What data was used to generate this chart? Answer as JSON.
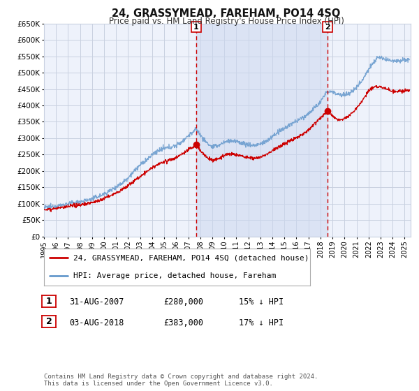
{
  "title": "24, GRASSYMEAD, FAREHAM, PO14 4SQ",
  "subtitle": "Price paid vs. HM Land Registry's House Price Index (HPI)",
  "ylim": [
    0,
    650000
  ],
  "yticks": [
    0,
    50000,
    100000,
    150000,
    200000,
    250000,
    300000,
    350000,
    400000,
    450000,
    500000,
    550000,
    600000,
    650000
  ],
  "ytick_labels": [
    "£0",
    "£50K",
    "£100K",
    "£150K",
    "£200K",
    "£250K",
    "£300K",
    "£350K",
    "£400K",
    "£450K",
    "£500K",
    "£550K",
    "£600K",
    "£650K"
  ],
  "xlim_start": 1995.0,
  "xlim_end": 2025.5,
  "bg_color": "#ffffff",
  "plot_bg_color": "#eef2fb",
  "grid_color": "#c8d0e0",
  "shade_color": "#ccd8f0",
  "hpi_color": "#6699cc",
  "price_color": "#cc0000",
  "marker1_x": 2007.667,
  "marker1_y": 280000,
  "marker2_x": 2018.583,
  "marker2_y": 383000,
  "vline1_x": 2007.667,
  "vline2_x": 2018.583,
  "vline_color": "#cc0000",
  "legend_label_price": "24, GRASSYMEAD, FAREHAM, PO14 4SQ (detached house)",
  "legend_label_hpi": "HPI: Average price, detached house, Fareham",
  "table_row1": [
    "1",
    "31-AUG-2007",
    "£280,000",
    "15% ↓ HPI"
  ],
  "table_row2": [
    "2",
    "03-AUG-2018",
    "£383,000",
    "17% ↓ HPI"
  ],
  "footer": "Contains HM Land Registry data © Crown copyright and database right 2024.\nThis data is licensed under the Open Government Licence v3.0."
}
